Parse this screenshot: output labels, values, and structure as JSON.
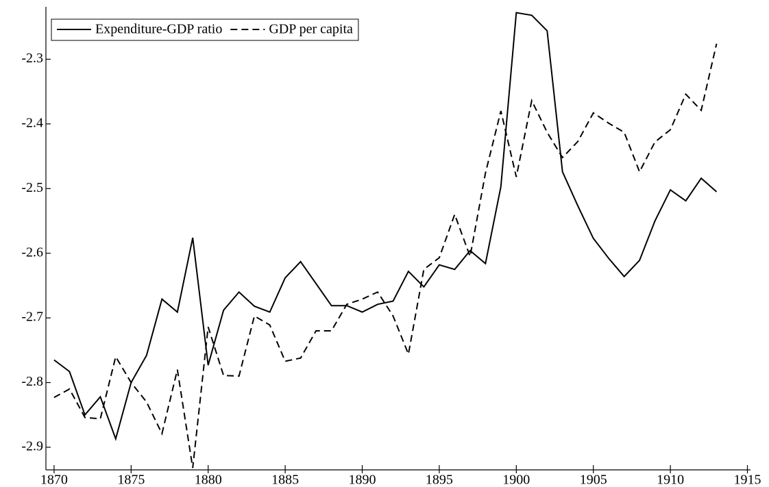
{
  "chart_data": {
    "type": "line",
    "x": [
      1870,
      1871,
      1872,
      1873,
      1874,
      1875,
      1876,
      1877,
      1878,
      1879,
      1880,
      1881,
      1882,
      1883,
      1884,
      1885,
      1886,
      1887,
      1888,
      1889,
      1890,
      1891,
      1892,
      1893,
      1894,
      1895,
      1896,
      1897,
      1898,
      1899,
      1900,
      1901,
      1902,
      1903,
      1904,
      1905,
      1906,
      1907,
      1908,
      1909,
      1910,
      1911,
      1912,
      1913
    ],
    "series": [
      {
        "name": "Expenditure-GDP ratio",
        "color": "#000000",
        "dash": "solid",
        "values": [
          -2.765,
          -2.783,
          -2.85,
          -2.822,
          -2.887,
          -2.8,
          -2.758,
          -2.671,
          -2.691,
          -2.576,
          -2.773,
          -2.688,
          -2.66,
          -2.682,
          -2.691,
          -2.638,
          -2.613,
          -2.647,
          -2.681,
          -2.681,
          -2.691,
          -2.679,
          -2.674,
          -2.628,
          -2.652,
          -2.618,
          -2.625,
          -2.596,
          -2.616,
          -2.497,
          -2.228,
          -2.232,
          -2.256,
          -2.474,
          -2.527,
          -2.577,
          -2.608,
          -2.636,
          -2.611,
          -2.55,
          -2.502,
          -2.519,
          -2.484,
          -2.505
        ]
      },
      {
        "name": "GDP per capita",
        "color": "#000000",
        "dash": "dashed",
        "values": [
          -2.823,
          -2.81,
          -2.854,
          -2.856,
          -2.76,
          -2.8,
          -2.83,
          -2.879,
          -2.78,
          -2.932,
          -2.714,
          -2.789,
          -2.79,
          -2.697,
          -2.711,
          -2.767,
          -2.762,
          -2.72,
          -2.72,
          -2.679,
          -2.671,
          -2.66,
          -2.697,
          -2.756,
          -2.625,
          -2.607,
          -2.54,
          -2.605,
          -2.476,
          -2.38,
          -2.482,
          -2.364,
          -2.413,
          -2.452,
          -2.427,
          -2.383,
          -2.399,
          -2.413,
          -2.474,
          -2.428,
          -2.409,
          -2.354,
          -2.379,
          -2.276
        ]
      }
    ],
    "xlim": [
      1869.47,
      1915.2
    ],
    "xticks": [
      1870,
      1875,
      1880,
      1885,
      1890,
      1895,
      1900,
      1905,
      1910,
      1915
    ],
    "ylim": [
      -2.935,
      -2.219
    ],
    "yticks": [
      -2.9,
      -2.8,
      -2.7,
      -2.6,
      -2.5,
      -2.4,
      -2.3
    ],
    "legend": "upper left"
  }
}
